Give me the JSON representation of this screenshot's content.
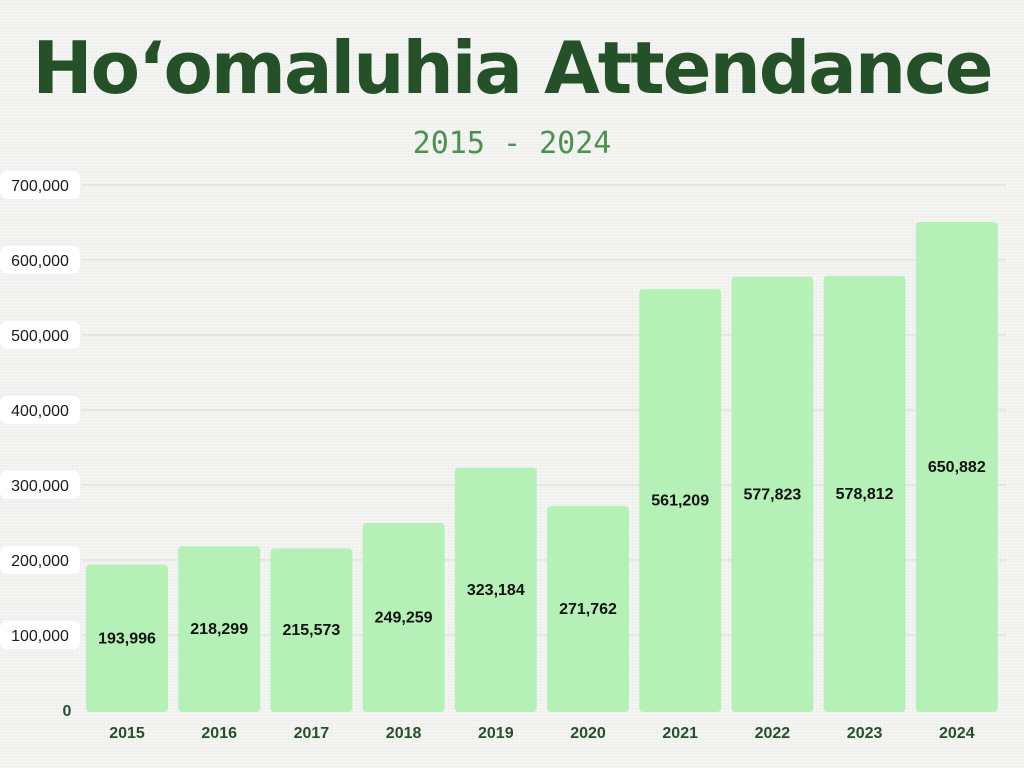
{
  "header": {
    "title": "Hoʻomaluhia Attendance",
    "subtitle": "2015 - 2024"
  },
  "colors": {
    "bar": "#b5f1b6",
    "title": "#245128",
    "subtitle": "#4a934f",
    "grid": "#d9d9d9"
  },
  "chart_data": {
    "type": "bar",
    "title": "Hoʻomaluhia Attendance",
    "subtitle": "2015 - 2024",
    "xlabel": "",
    "ylabel": "",
    "categories": [
      "2015",
      "2016",
      "2017",
      "2018",
      "2019",
      "2020",
      "2021",
      "2022",
      "2023",
      "2024"
    ],
    "values": [
      193996,
      218299,
      215573,
      249259,
      323184,
      271762,
      561209,
      577823,
      578812,
      650882
    ],
    "value_labels": [
      "193,996",
      "218,299",
      "215,573",
      "249,259",
      "323,184",
      "271,762",
      "561,209",
      "577,823",
      "578,812",
      "650,882"
    ],
    "ylim": [
      0,
      700000
    ],
    "yticks": [
      0,
      100000,
      200000,
      300000,
      400000,
      500000,
      600000,
      700000
    ],
    "ytick_labels": [
      "0",
      "100,000",
      "200,000",
      "300,000",
      "400,000",
      "500,000",
      "600,000",
      "700,000"
    ],
    "grid": true,
    "legend": "none"
  }
}
